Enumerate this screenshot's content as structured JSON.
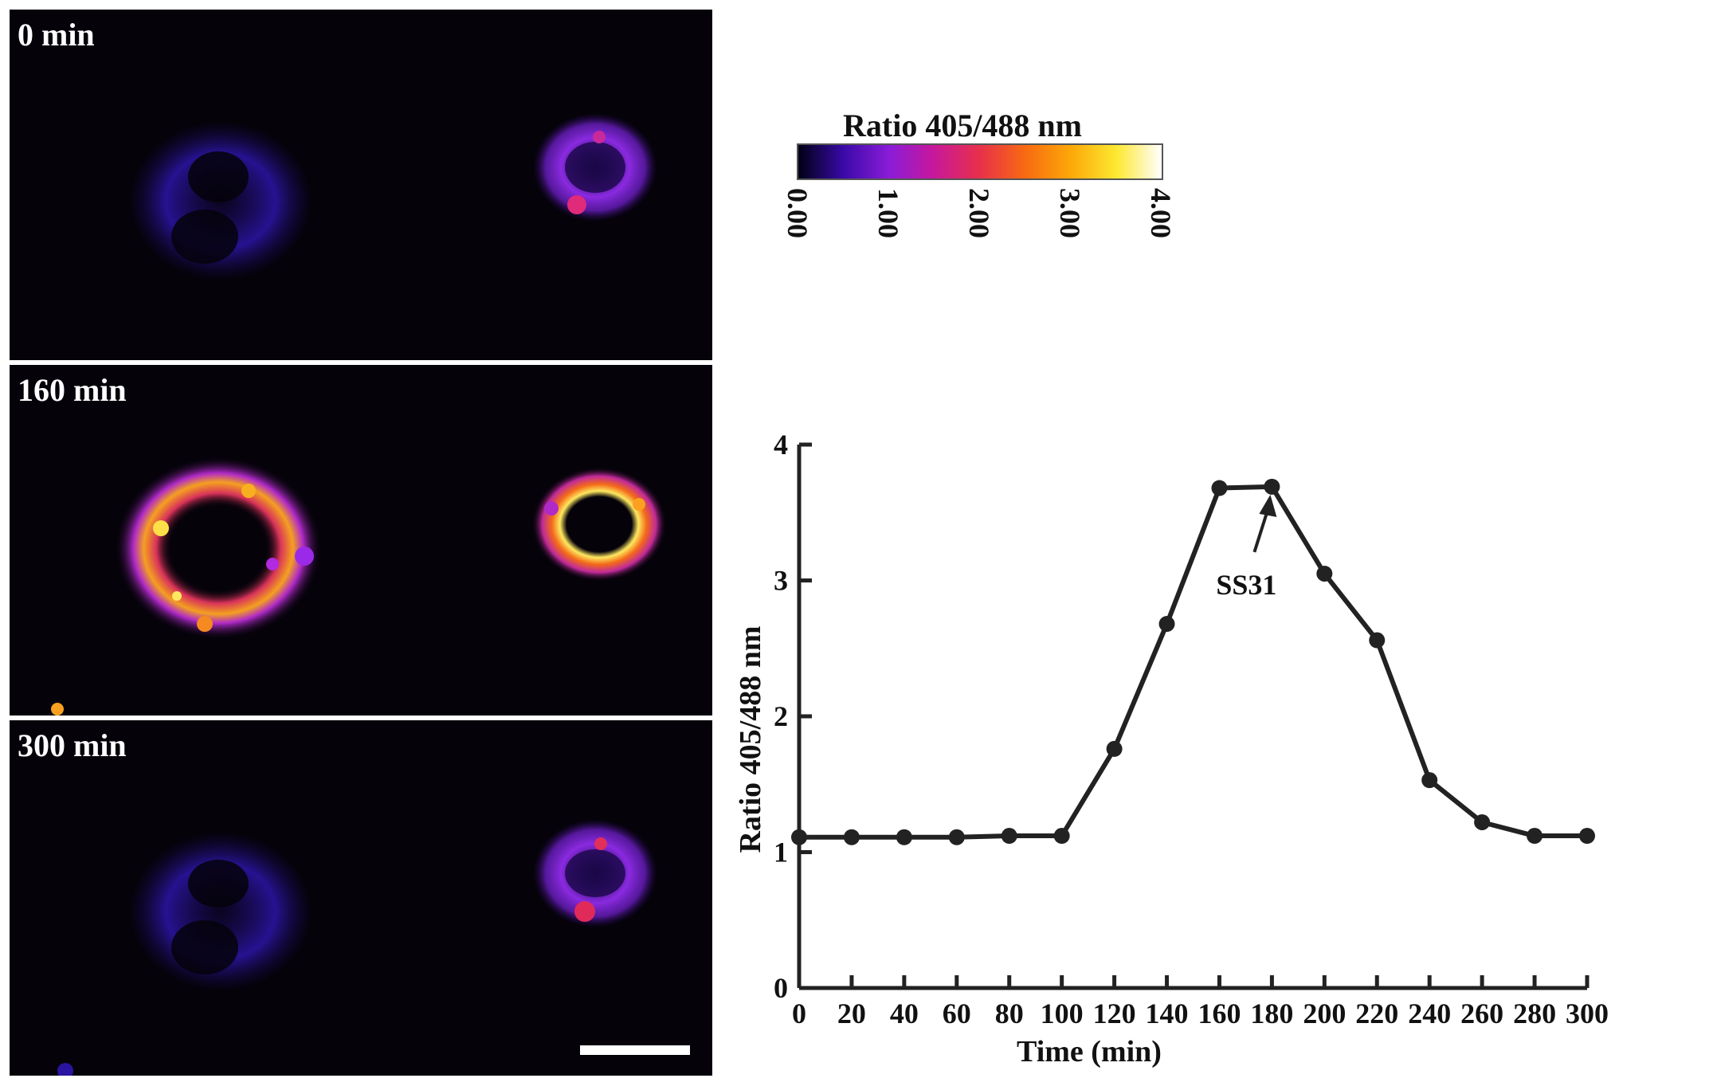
{
  "panels": [
    {
      "label": "0 min",
      "state": "low"
    },
    {
      "label": "160 min",
      "state": "high"
    },
    {
      "label": "300 min",
      "state": "low"
    }
  ],
  "colorbar": {
    "title": "Ratio 405/488 nm",
    "ticks": [
      "0.00",
      "1.00",
      "2.00",
      "3.00",
      "4.00"
    ],
    "colors": [
      "#000014",
      "#3a0aa8",
      "#8a1cd8",
      "#c8189a",
      "#e8304a",
      "#f86a12",
      "#fca808",
      "#fde830",
      "#ffffff"
    ]
  },
  "chart_data": {
    "type": "line",
    "xlabel": "Time (min)",
    "ylabel": "Ratio 405/488 nm",
    "xlim": [
      0,
      300
    ],
    "ylim": [
      0,
      4
    ],
    "xticks": [
      0,
      20,
      40,
      60,
      80,
      100,
      120,
      140,
      160,
      180,
      200,
      220,
      240,
      260,
      280,
      300
    ],
    "yticks": [
      0,
      1,
      2,
      3,
      4
    ],
    "series": [
      {
        "x": [
          0,
          20,
          40,
          60,
          80,
          100,
          120,
          140,
          160,
          180,
          200,
          220,
          240,
          260,
          280,
          300
        ],
        "y": [
          1.11,
          1.11,
          1.11,
          1.11,
          1.12,
          1.12,
          1.76,
          2.68,
          3.68,
          3.69,
          3.05,
          2.56,
          1.53,
          1.22,
          1.12,
          1.12
        ]
      }
    ],
    "annotation": {
      "text": "SS31",
      "x": 180,
      "y": 3.69
    },
    "color": "#222222",
    "grid": false
  }
}
